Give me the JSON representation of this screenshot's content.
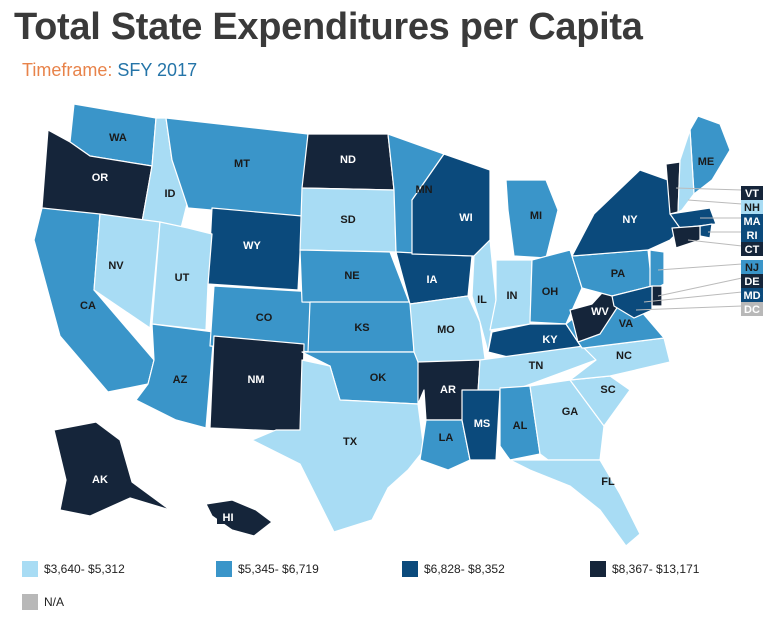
{
  "title": "Total State Expenditures per Capita",
  "timeframe_label": "Timeframe:",
  "timeframe_value": "SFY 2017",
  "colors": {
    "t1": "#a8dcf4",
    "t2": "#3a95c9",
    "t3": "#0b4a7c",
    "t4": "#15253a",
    "na": "#b8b8b8",
    "border": "#ffffff"
  },
  "legend": [
    {
      "tier": "t1",
      "label": "$3,640- $5,312"
    },
    {
      "tier": "t2",
      "label": "$5,345- $6,719"
    },
    {
      "tier": "t3",
      "label": "$6,828- $8,352"
    },
    {
      "tier": "t4",
      "label": "$8,367- $13,171"
    },
    {
      "tier": "na",
      "label": "N/A"
    }
  ],
  "states": [
    {
      "abbr": "WA",
      "tier": "t2"
    },
    {
      "abbr": "OR",
      "tier": "t4"
    },
    {
      "abbr": "ID",
      "tier": "t1"
    },
    {
      "abbr": "MT",
      "tier": "t2"
    },
    {
      "abbr": "WY",
      "tier": "t3"
    },
    {
      "abbr": "CA",
      "tier": "t2"
    },
    {
      "abbr": "NV",
      "tier": "t1"
    },
    {
      "abbr": "UT",
      "tier": "t1"
    },
    {
      "abbr": "AZ",
      "tier": "t2"
    },
    {
      "abbr": "CO",
      "tier": "t2"
    },
    {
      "abbr": "NM",
      "tier": "t4"
    },
    {
      "abbr": "ND",
      "tier": "t4"
    },
    {
      "abbr": "SD",
      "tier": "t1"
    },
    {
      "abbr": "NE",
      "tier": "t2"
    },
    {
      "abbr": "KS",
      "tier": "t2"
    },
    {
      "abbr": "OK",
      "tier": "t2"
    },
    {
      "abbr": "TX",
      "tier": "t1"
    },
    {
      "abbr": "MN",
      "tier": "t2"
    },
    {
      "abbr": "IA",
      "tier": "t3"
    },
    {
      "abbr": "MO",
      "tier": "t1"
    },
    {
      "abbr": "AR",
      "tier": "t4"
    },
    {
      "abbr": "LA",
      "tier": "t2"
    },
    {
      "abbr": "WI",
      "tier": "t3"
    },
    {
      "abbr": "IL",
      "tier": "t1"
    },
    {
      "abbr": "MI",
      "tier": "t2"
    },
    {
      "abbr": "IN",
      "tier": "t1"
    },
    {
      "abbr": "OH",
      "tier": "t2"
    },
    {
      "abbr": "KY",
      "tier": "t3"
    },
    {
      "abbr": "TN",
      "tier": "t1"
    },
    {
      "abbr": "MS",
      "tier": "t3"
    },
    {
      "abbr": "AL",
      "tier": "t2"
    },
    {
      "abbr": "GA",
      "tier": "t1"
    },
    {
      "abbr": "FL",
      "tier": "t1"
    },
    {
      "abbr": "SC",
      "tier": "t1"
    },
    {
      "abbr": "NC",
      "tier": "t1"
    },
    {
      "abbr": "VA",
      "tier": "t2"
    },
    {
      "abbr": "WV",
      "tier": "t4"
    },
    {
      "abbr": "PA",
      "tier": "t2"
    },
    {
      "abbr": "NY",
      "tier": "t3"
    },
    {
      "abbr": "ME",
      "tier": "t2"
    },
    {
      "abbr": "AK",
      "tier": "t4"
    },
    {
      "abbr": "HI",
      "tier": "t4"
    },
    {
      "abbr": "VT",
      "tier": "t4"
    },
    {
      "abbr": "NH",
      "tier": "t1"
    },
    {
      "abbr": "MA",
      "tier": "t3"
    },
    {
      "abbr": "RI",
      "tier": "t3"
    },
    {
      "abbr": "CT",
      "tier": "t4"
    },
    {
      "abbr": "NJ",
      "tier": "t2"
    },
    {
      "abbr": "DE",
      "tier": "t4"
    },
    {
      "abbr": "MD",
      "tier": "t3"
    },
    {
      "abbr": "DC",
      "tier": "na"
    }
  ]
}
